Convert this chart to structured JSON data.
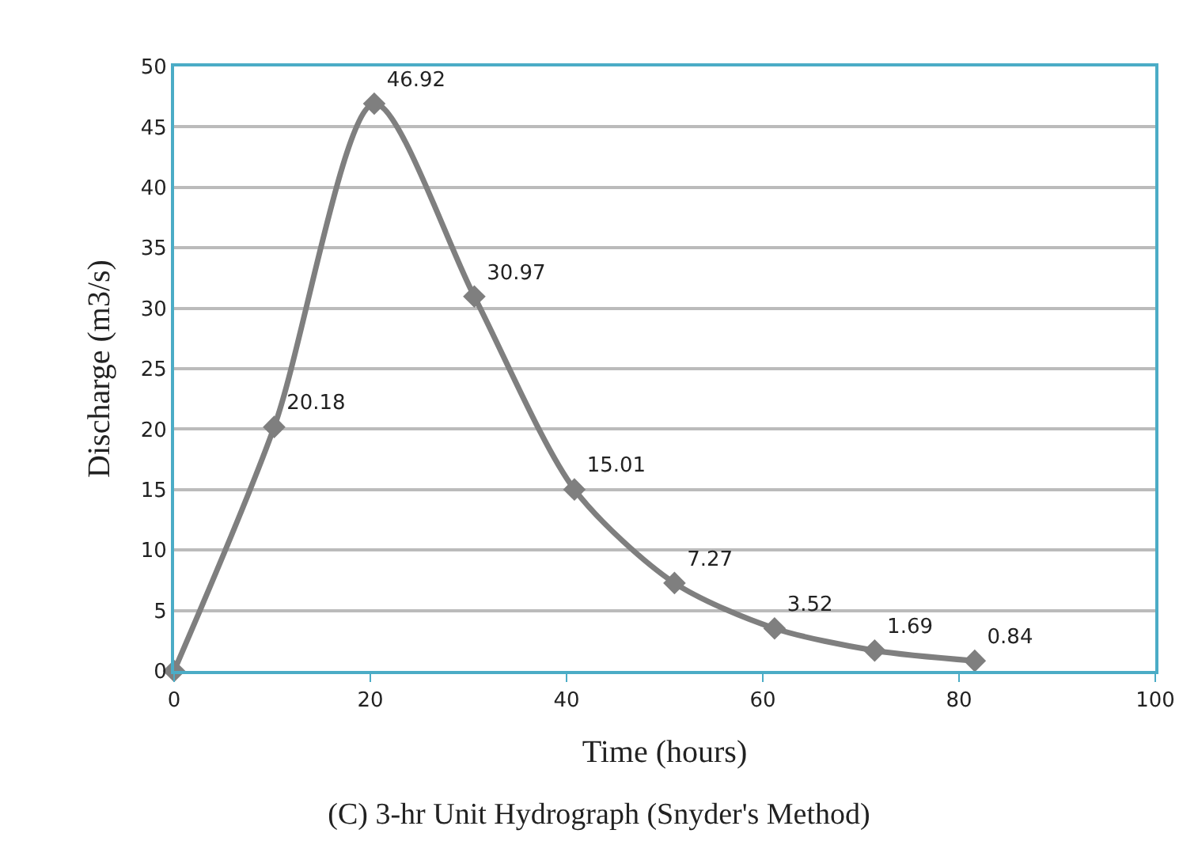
{
  "chart_data": {
    "type": "line",
    "title": "(C) 3-hr Unit Hydrograph (Snyder's Method)",
    "xlabel": "Time (hours)",
    "ylabel": "Discharge (m3/s)",
    "x": [
      0,
      10.2,
      20.4,
      30.6,
      40.8,
      51,
      61.2,
      71.4,
      81.6
    ],
    "series": [
      {
        "color": "#7f7f7f",
        "values": [
          0,
          20.18,
          46.92,
          30.97,
          15.01,
          7.27,
          3.52,
          1.69,
          0.84
        ],
        "value_labels": [
          null,
          "20.18",
          "46.92",
          "30.97",
          "15.01",
          "7.27",
          "3.52",
          "1.69",
          "0.84"
        ]
      }
    ],
    "xlim": [
      0,
      100
    ],
    "xticks": [
      0,
      20,
      40,
      60,
      80,
      100
    ],
    "ylim": [
      0,
      50
    ],
    "yticks": [
      0,
      5,
      10,
      15,
      20,
      25,
      30,
      35,
      40,
      45,
      50
    ],
    "grid": "y",
    "marker": "diamond",
    "line_style": "solid",
    "legend": false
  }
}
